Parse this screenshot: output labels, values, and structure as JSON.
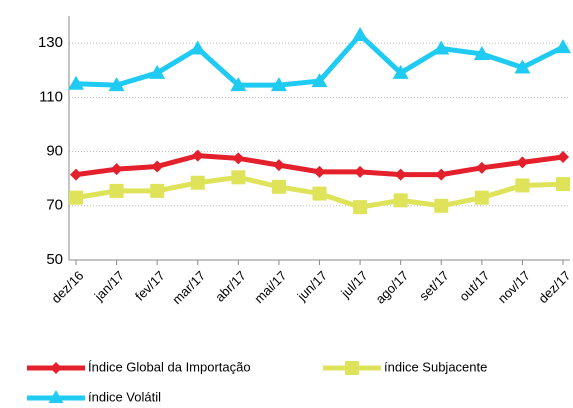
{
  "chart_data": {
    "type": "line",
    "categories": [
      "dez/16",
      "jan/17",
      "fev/17",
      "mar/17",
      "abr/17",
      "mai/17",
      "jun/17",
      "jul/17",
      "ago/17",
      "set/17",
      "out/17",
      "nov/17",
      "dez/17"
    ],
    "series": [
      {
        "name": "Índice Global da Importação",
        "color": "#e3202b",
        "marker": "diamond",
        "values": [
          81.5,
          83.5,
          84.5,
          88.5,
          87.5,
          85,
          82.5,
          82.5,
          81.5,
          81.5,
          84,
          86,
          88
        ]
      },
      {
        "name": "índice Subjacente",
        "color": "#dfe35a",
        "marker": "square",
        "values": [
          73,
          75.5,
          75.5,
          78.5,
          80.5,
          77,
          74.5,
          69.5,
          72,
          70,
          73,
          77.5,
          78
        ]
      },
      {
        "name": "índice Volátil",
        "color": "#1fcbf3",
        "marker": "triangle",
        "values": [
          115,
          114.5,
          119,
          128,
          114.5,
          114.5,
          116,
          133,
          119,
          128,
          126,
          121,
          128.5
        ]
      }
    ],
    "ylim": [
      50,
      140
    ],
    "yticks": [
      50,
      70,
      90,
      110,
      130
    ],
    "grid": true
  }
}
